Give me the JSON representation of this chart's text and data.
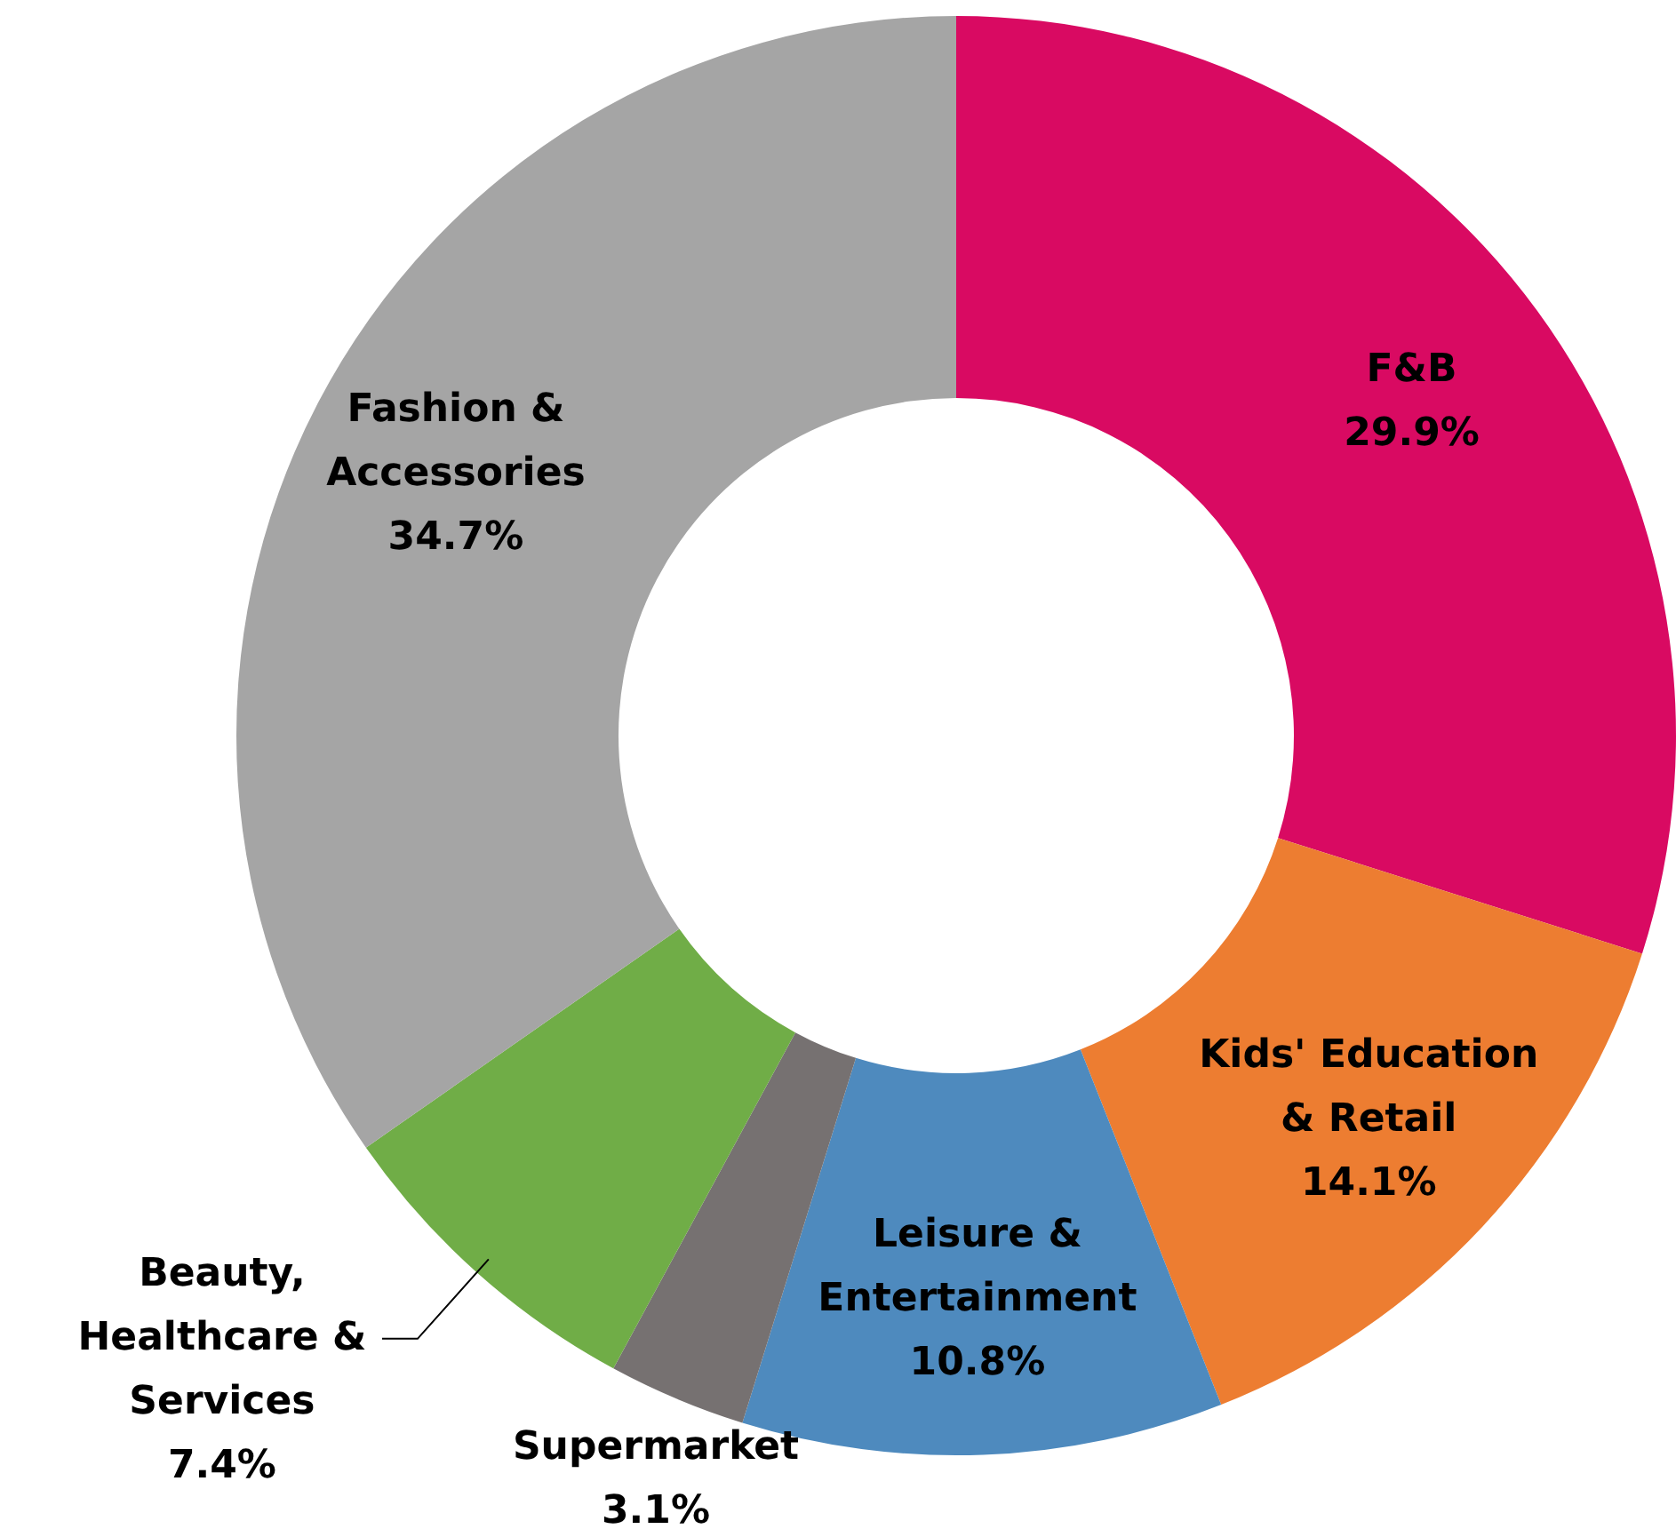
{
  "chart_data": {
    "type": "donut",
    "categories": [
      "F&B",
      "Kids' Education & Retail",
      "Leisure & Entertainment",
      "Supermarket",
      "Beauty, Healthcare & Services",
      "Fashion & Accessories"
    ],
    "values": [
      29.9,
      14.1,
      10.8,
      3.1,
      7.4,
      34.7
    ],
    "value_labels": [
      "29.9%",
      "14.1%",
      "10.8%",
      "3.1%",
      "7.4%",
      "34.7%"
    ],
    "colors": [
      "#d90a62",
      "#ed7d31",
      "#4e8abe",
      "#767171",
      "#70ad47",
      "#a5a5a5"
    ],
    "legend": false
  }
}
